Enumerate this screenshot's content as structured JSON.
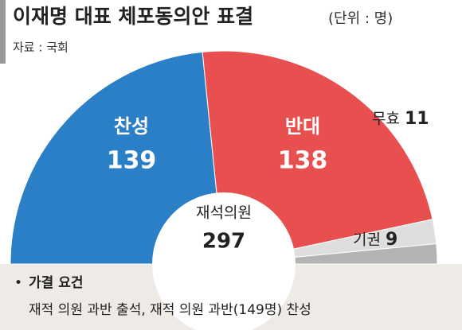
{
  "chart_data": {
    "type": "half-donut",
    "title": "이재명 대표 체포동의안 표결",
    "subtitle": "(단위 : 명)",
    "source": "자료 : 국회",
    "categories": [
      "찬성",
      "반대",
      "무효",
      "기권"
    ],
    "values": [
      139,
      138,
      11,
      9
    ],
    "colors": [
      "#2a7fc6",
      "#e8504f",
      "#dedede",
      "#b3b3b3"
    ],
    "center_label": "재석의원",
    "center_value": 297,
    "note_title": "가결 요건",
    "note": "재적 의원 과반 출석, 재적 의원 과반(149명) 찬성"
  }
}
